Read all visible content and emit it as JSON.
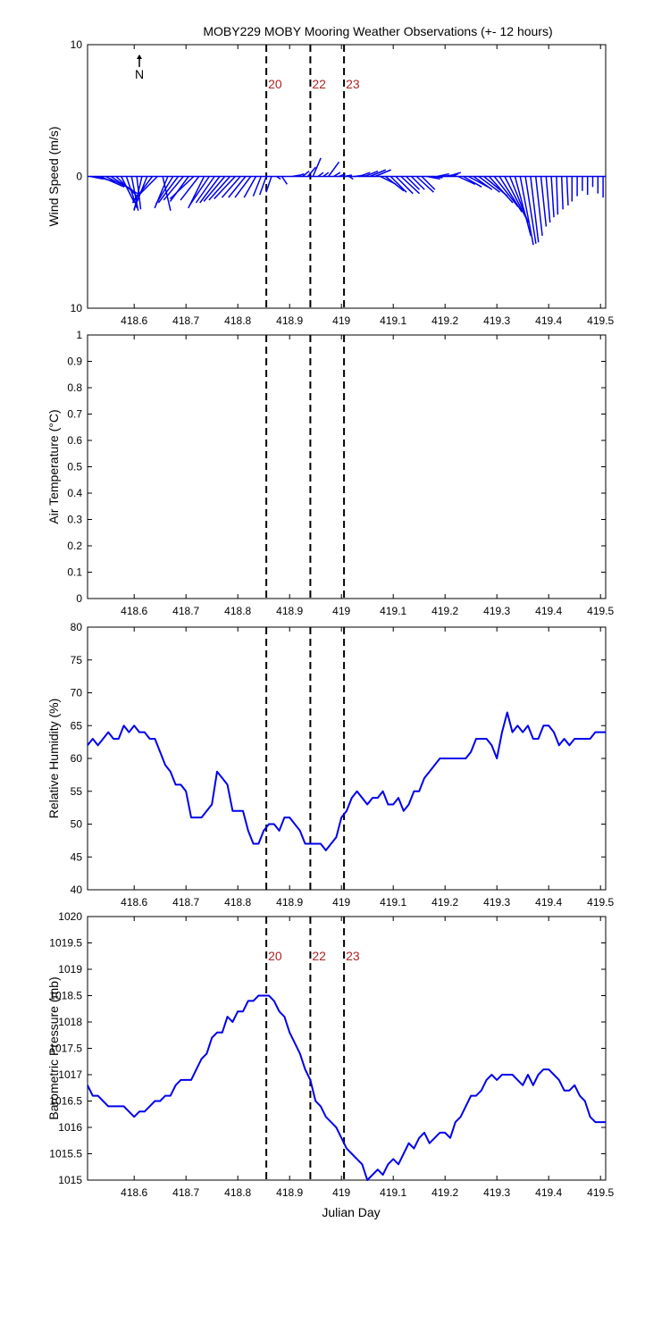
{
  "chart_data": {
    "title": "MOBY229 MOBY Mooring Weather Observations (+- 12 hours)",
    "x_ticks": [
      "418.6",
      "418.7",
      "418.8",
      "418.9",
      "419",
      "419.1",
      "419.2",
      "419.3",
      "419.4",
      "419.5"
    ],
    "x_tick_values": [
      418.6,
      418.7,
      418.8,
      418.9,
      419.0,
      419.1,
      419.2,
      419.3,
      419.4,
      419.5
    ],
    "xlim": [
      418.51,
      419.51
    ],
    "xlabel": "Julian Day",
    "markers": [
      {
        "label": "20",
        "x": 418.855
      },
      {
        "label": "22",
        "x": 418.94
      },
      {
        "label": "23",
        "x": 419.005
      }
    ],
    "colors": {
      "series": "#0000ee",
      "marker_label": "#b22222",
      "axes": "#000000"
    },
    "panels": [
      {
        "type": "quiver",
        "ylabel": "Wind Speed (m/s)",
        "ylim": [
          -10,
          10
        ],
        "y_ticks": [
          "10",
          "0",
          "10"
        ],
        "y_tick_values": [
          10,
          0,
          -10
        ],
        "north_label": "N",
        "show_markers": true,
        "vectors": [
          [
            418.515,
            1.0,
            -0.2
          ],
          [
            418.525,
            1.5,
            -0.4
          ],
          [
            418.535,
            1.8,
            -0.8
          ],
          [
            418.545,
            2.0,
            -1.0
          ],
          [
            418.555,
            2.0,
            -1.3
          ],
          [
            418.565,
            1.6,
            -1.5
          ],
          [
            418.575,
            1.0,
            -2.0
          ],
          [
            418.585,
            0.8,
            -2.4
          ],
          [
            418.595,
            0.5,
            -2.6
          ],
          [
            418.605,
            0.3,
            -2.5
          ],
          [
            418.615,
            -0.6,
            -2.6
          ],
          [
            418.625,
            -1.0,
            -2.5
          ],
          [
            418.635,
            -1.5,
            -2.0
          ],
          [
            418.645,
            -1.8,
            -1.8
          ],
          [
            418.655,
            0.6,
            -2.6
          ],
          [
            418.665,
            -1.0,
            -2.4
          ],
          [
            418.675,
            -1.3,
            -2.1
          ],
          [
            418.685,
            -1.5,
            -2.0
          ],
          [
            418.695,
            -1.5,
            -1.8
          ],
          [
            418.705,
            -1.4,
            -1.9
          ],
          [
            418.715,
            -1.8,
            -1.7
          ],
          [
            418.725,
            -1.4,
            -1.8
          ],
          [
            418.735,
            -1.2,
            -2.4
          ],
          [
            418.745,
            -1.5,
            -2.2
          ],
          [
            418.755,
            -1.4,
            -2.0
          ],
          [
            418.765,
            -1.5,
            -2.0
          ],
          [
            418.775,
            -1.6,
            -1.9
          ],
          [
            418.785,
            -1.6,
            -1.8
          ],
          [
            418.795,
            -1.6,
            -1.7
          ],
          [
            418.805,
            -1.4,
            -1.6
          ],
          [
            418.815,
            -1.3,
            -1.6
          ],
          [
            418.825,
            -1.2,
            -1.6
          ],
          [
            418.835,
            -0.9,
            -1.6
          ],
          [
            418.845,
            -0.6,
            -1.5
          ],
          [
            418.855,
            -0.5,
            -1.4
          ],
          [
            418.865,
            -0.4,
            -1.2
          ],
          [
            418.875,
            0.3,
            -0.2
          ],
          [
            418.885,
            0.4,
            -0.6
          ],
          [
            418.905,
            0.6,
            0.1
          ],
          [
            418.915,
            0.5,
            0.2
          ],
          [
            418.925,
            0.5,
            0.4
          ],
          [
            418.935,
            0.6,
            0.7
          ],
          [
            418.945,
            0.6,
            1.4
          ],
          [
            418.955,
            0.4,
            0.3
          ],
          [
            418.965,
            0.4,
            0.3
          ],
          [
            418.975,
            0.8,
            1.1
          ],
          [
            418.985,
            0.5,
            0.3
          ],
          [
            418.995,
            0.5,
            0.2
          ],
          [
            419.005,
            0.6,
            0.1
          ],
          [
            419.015,
            0.3,
            -0.2
          ],
          [
            419.025,
            0.8,
            0.1
          ],
          [
            419.035,
            0.8,
            0.3
          ],
          [
            419.045,
            1.0,
            0.4
          ],
          [
            419.055,
            1.2,
            0.5
          ],
          [
            419.065,
            1.2,
            0.5
          ],
          [
            419.075,
            1.2,
            -0.6
          ],
          [
            419.085,
            1.4,
            -1.1
          ],
          [
            419.095,
            1.2,
            -1.2
          ],
          [
            419.105,
            1.3,
            -1.3
          ],
          [
            419.115,
            1.4,
            -1.3
          ],
          [
            419.125,
            1.0,
            -1.0
          ],
          [
            419.135,
            1.0,
            -1.0
          ],
          [
            419.145,
            1.3,
            -1.2
          ],
          [
            419.155,
            1.0,
            -1.0
          ],
          [
            419.165,
            1.0,
            -0.2
          ],
          [
            419.175,
            0.8,
            -0.1
          ],
          [
            419.185,
            0.9,
            0.2
          ],
          [
            419.195,
            0.8,
            0.1
          ],
          [
            419.205,
            1.0,
            0.3
          ],
          [
            419.215,
            0.4,
            0.2
          ],
          [
            419.225,
            1.3,
            -0.6
          ],
          [
            419.235,
            1.4,
            -0.8
          ],
          [
            419.245,
            1.5,
            -0.8
          ],
          [
            419.255,
            1.4,
            -1.0
          ],
          [
            419.265,
            1.6,
            -1.2
          ],
          [
            419.275,
            1.8,
            -1.5
          ],
          [
            419.285,
            1.8,
            -2.0
          ],
          [
            419.295,
            1.8,
            -2.3
          ],
          [
            419.305,
            1.7,
            -2.7
          ],
          [
            419.315,
            1.6,
            -3.1
          ],
          [
            419.325,
            1.4,
            -3.5
          ],
          [
            419.335,
            1.2,
            -4.5
          ],
          [
            419.345,
            1.0,
            -5.2
          ],
          [
            419.355,
            0.8,
            -5.1
          ],
          [
            419.365,
            0.6,
            -5.0
          ],
          [
            419.375,
            0.5,
            -4.5
          ],
          [
            419.385,
            0.4,
            -3.8
          ],
          [
            419.395,
            0.3,
            -3.5
          ],
          [
            419.405,
            0.2,
            -3.1
          ],
          [
            419.415,
            0.1,
            -2.9
          ],
          [
            419.425,
            0.1,
            -2.5
          ],
          [
            419.435,
            0.1,
            -2.2
          ],
          [
            419.445,
            0.0,
            -1.9
          ],
          [
            419.455,
            0.0,
            -1.5
          ],
          [
            419.465,
            0.0,
            -1.1
          ],
          [
            419.475,
            0.0,
            -1.4
          ],
          [
            419.485,
            0.0,
            -0.8
          ],
          [
            419.495,
            0.0,
            -1.3
          ],
          [
            419.505,
            0.0,
            -1.6
          ]
        ]
      },
      {
        "type": "line",
        "ylabel": "Air Temperature (°C)",
        "ylim": [
          0,
          1
        ],
        "y_ticks": [
          "0",
          "0.1",
          "0.2",
          "0.3",
          "0.4",
          "0.5",
          "0.6",
          "0.7",
          "0.8",
          "0.9",
          "1"
        ],
        "y_tick_values": [
          0,
          0.1,
          0.2,
          0.3,
          0.4,
          0.5,
          0.6,
          0.7,
          0.8,
          0.9,
          1
        ],
        "show_markers": false,
        "x": [],
        "y": []
      },
      {
        "type": "line",
        "ylabel": "Relative Humidity (%)",
        "ylim": [
          40,
          80
        ],
        "y_ticks": [
          "40",
          "45",
          "50",
          "55",
          "60",
          "65",
          "70",
          "75",
          "80"
        ],
        "y_tick_values": [
          40,
          45,
          50,
          55,
          60,
          65,
          70,
          75,
          80
        ],
        "show_markers": false,
        "x": [
          418.51,
          418.52,
          418.53,
          418.54,
          418.55,
          418.56,
          418.57,
          418.58,
          418.59,
          418.6,
          418.61,
          418.62,
          418.63,
          418.64,
          418.65,
          418.66,
          418.67,
          418.68,
          418.69,
          418.7,
          418.71,
          418.72,
          418.73,
          418.74,
          418.75,
          418.76,
          418.77,
          418.78,
          418.79,
          418.8,
          418.81,
          418.82,
          418.83,
          418.84,
          418.85,
          418.86,
          418.87,
          418.88,
          418.89,
          418.9,
          418.91,
          418.92,
          418.93,
          418.94,
          418.95,
          418.96,
          418.97,
          418.98,
          418.99,
          419.0,
          419.01,
          419.02,
          419.03,
          419.04,
          419.05,
          419.06,
          419.07,
          419.08,
          419.09,
          419.1,
          419.11,
          419.12,
          419.13,
          419.14,
          419.15,
          419.16,
          419.17,
          419.18,
          419.19,
          419.2,
          419.21,
          419.22,
          419.23,
          419.24,
          419.25,
          419.26,
          419.27,
          419.28,
          419.29,
          419.3,
          419.31,
          419.32,
          419.33,
          419.34,
          419.35,
          419.36,
          419.37,
          419.38,
          419.39,
          419.4,
          419.41,
          419.42,
          419.43,
          419.44,
          419.45,
          419.46,
          419.47,
          419.48,
          419.49,
          419.5,
          419.51
        ],
        "y": [
          62,
          63,
          62,
          63,
          64,
          63,
          63,
          65,
          64,
          65,
          64,
          64,
          63,
          63,
          61,
          59,
          58,
          56,
          56,
          55,
          51,
          51,
          51,
          52,
          53,
          58,
          57,
          56,
          52,
          52,
          52,
          49,
          47,
          47,
          49,
          50,
          50,
          49,
          51,
          51,
          50,
          49,
          47,
          47,
          47,
          47,
          46,
          47,
          48,
          51,
          52,
          54,
          55,
          54,
          53,
          54,
          54,
          55,
          53,
          53,
          54,
          52,
          53,
          55,
          55,
          57,
          58,
          59,
          60,
          60,
          60,
          60,
          60,
          60,
          61,
          63,
          63,
          63,
          62,
          60,
          64,
          67,
          64,
          65,
          64,
          65,
          63,
          63,
          65,
          65,
          64,
          62,
          63,
          62,
          63,
          63,
          63,
          63,
          64,
          64,
          64
        ]
      },
      {
        "type": "line",
        "ylabel": "Barometric Pressure (mb)",
        "ylim": [
          1015,
          1020
        ],
        "y_ticks": [
          "1015",
          "1015.5",
          "1016",
          "1016.5",
          "1017",
          "1017.5",
          "1018",
          "1018.5",
          "1019",
          "1019.5",
          "1020"
        ],
        "y_tick_values": [
          1015,
          1015.5,
          1016,
          1016.5,
          1017,
          1017.5,
          1018,
          1018.5,
          1019,
          1019.5,
          1020
        ],
        "show_markers": true,
        "x": [
          418.51,
          418.52,
          418.53,
          418.54,
          418.55,
          418.56,
          418.57,
          418.58,
          418.59,
          418.6,
          418.61,
          418.62,
          418.63,
          418.64,
          418.65,
          418.66,
          418.67,
          418.68,
          418.69,
          418.7,
          418.71,
          418.72,
          418.73,
          418.74,
          418.75,
          418.76,
          418.77,
          418.78,
          418.79,
          418.8,
          418.81,
          418.82,
          418.83,
          418.84,
          418.85,
          418.86,
          418.87,
          418.88,
          418.89,
          418.9,
          418.91,
          418.92,
          418.93,
          418.94,
          418.95,
          418.96,
          418.97,
          418.98,
          418.99,
          419.0,
          419.01,
          419.02,
          419.03,
          419.04,
          419.05,
          419.06,
          419.07,
          419.08,
          419.09,
          419.1,
          419.11,
          419.12,
          419.13,
          419.14,
          419.15,
          419.16,
          419.17,
          419.18,
          419.19,
          419.2,
          419.21,
          419.22,
          419.23,
          419.24,
          419.25,
          419.26,
          419.27,
          419.28,
          419.29,
          419.3,
          419.31,
          419.32,
          419.33,
          419.34,
          419.35,
          419.36,
          419.37,
          419.38,
          419.39,
          419.4,
          419.41,
          419.42,
          419.43,
          419.44,
          419.45,
          419.46,
          419.47,
          419.48,
          419.49,
          419.5,
          419.51
        ],
        "y": [
          1016.8,
          1016.6,
          1016.6,
          1016.5,
          1016.4,
          1016.4,
          1016.4,
          1016.4,
          1016.3,
          1016.2,
          1016.3,
          1016.3,
          1016.4,
          1016.5,
          1016.5,
          1016.6,
          1016.6,
          1016.8,
          1016.9,
          1016.9,
          1016.9,
          1017.1,
          1017.3,
          1017.4,
          1017.7,
          1017.8,
          1017.8,
          1018.1,
          1018.0,
          1018.2,
          1018.2,
          1018.4,
          1018.4,
          1018.5,
          1018.5,
          1018.5,
          1018.4,
          1018.2,
          1018.1,
          1017.8,
          1017.6,
          1017.4,
          1017.1,
          1016.9,
          1016.5,
          1016.4,
          1016.2,
          1016.1,
          1016.0,
          1015.8,
          1015.6,
          1015.5,
          1015.4,
          1015.3,
          1015.0,
          1015.1,
          1015.2,
          1015.1,
          1015.3,
          1015.4,
          1015.3,
          1015.5,
          1015.7,
          1015.6,
          1015.8,
          1015.9,
          1015.7,
          1015.8,
          1015.9,
          1015.9,
          1015.8,
          1016.1,
          1016.2,
          1016.4,
          1016.6,
          1016.6,
          1016.7,
          1016.9,
          1017.0,
          1016.9,
          1017.0,
          1017.0,
          1017.0,
          1016.9,
          1016.8,
          1017.0,
          1016.8,
          1017.0,
          1017.1,
          1017.1,
          1017.0,
          1016.9,
          1016.7,
          1016.7,
          1016.8,
          1016.6,
          1016.5,
          1016.2,
          1016.1,
          1016.1,
          1016.1
        ]
      }
    ]
  }
}
